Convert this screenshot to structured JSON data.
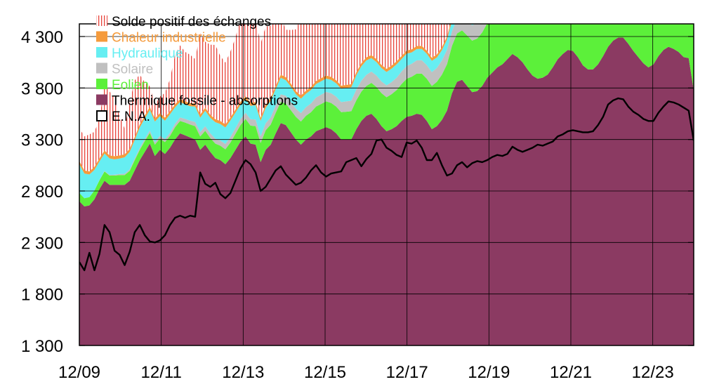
{
  "chart_data": {
    "type": "area",
    "title": "",
    "xlabel": "",
    "ylabel": "",
    "ylim": [
      1300,
      4300
    ],
    "y_ticks": [
      1300,
      1800,
      2300,
      2800,
      3300,
      3800,
      4300
    ],
    "y_tick_labels": [
      "1 300",
      "1 800",
      "2 300",
      "2 800",
      "3 300",
      "3 800",
      "4 300"
    ],
    "x_tick_labels": [
      "12/09",
      "12/11",
      "12/13",
      "12/15",
      "12/17",
      "12/19",
      "12/21",
      "12/23"
    ],
    "x_start": "2009-12",
    "x_end": "2024-12",
    "grid": true,
    "legend_position": "top-left",
    "stack_order": [
      "Thermique fossile - absorptions",
      "Eolien",
      "Solaire",
      "Hydraulique",
      "Chaleur industrielle",
      "Solde positif des échanges"
    ],
    "series": [
      {
        "name": "Thermique fossile - absorptions",
        "color": "#8b3a62",
        "values": [
          1400,
          1350,
          1360,
          1420,
          1520,
          1600,
          1560,
          1560,
          1560,
          1560,
          1600,
          1700,
          1800,
          1880,
          1960,
          1840,
          1900,
          1860,
          1920,
          2000,
          2060,
          2040,
          2020,
          2000,
          1900,
          1950,
          1880,
          1820,
          1800,
          1760,
          1820,
          1900,
          1980,
          2030,
          1960,
          1950,
          1780,
          1900,
          1950,
          2060,
          2160,
          2140,
          2070,
          2000,
          1950,
          2000,
          2030,
          2080,
          2100,
          2120,
          2100,
          2060,
          2000,
          2000,
          2000,
          2100,
          2180,
          2230,
          2250,
          2200,
          2130,
          2080,
          2100,
          2130,
          2180,
          2220,
          2230,
          2250,
          2240,
          2180,
          2100,
          2130,
          2190,
          2280,
          2450,
          2560,
          2580,
          2520,
          2460,
          2470,
          2520,
          2600,
          2650,
          2700,
          2730,
          2780,
          2830,
          2800,
          2750,
          2680,
          2620,
          2590,
          2600,
          2630,
          2700,
          2780,
          2830,
          2870,
          2860,
          2800,
          2720,
          2680,
          2680,
          2730,
          2810,
          2900,
          2960,
          2990,
          2990,
          2930,
          2860,
          2800,
          2740,
          2700,
          2730,
          2810,
          2870,
          2900,
          2880,
          2850,
          2800,
          2790,
          2480
        ]
      },
      {
        "name": "Eolien",
        "color": "#5cf03a",
        "values": [
          80,
          80,
          80,
          85,
          85,
          90,
          90,
          90,
          95,
          95,
          95,
          100,
          100,
          105,
          105,
          110,
          110,
          115,
          115,
          120,
          120,
          125,
          125,
          130,
          130,
          135,
          135,
          140,
          140,
          145,
          150,
          155,
          160,
          170,
          175,
          180,
          185,
          190,
          195,
          200,
          205,
          210,
          215,
          220,
          225,
          230,
          235,
          240,
          245,
          250,
          255,
          260,
          265,
          270,
          275,
          280,
          285,
          290,
          300,
          310,
          320,
          330,
          340,
          350,
          360,
          370,
          380,
          390,
          400,
          410,
          420,
          430,
          440,
          450,
          460,
          470,
          480,
          490,
          500,
          510,
          520,
          530,
          540,
          550,
          560,
          570,
          580,
          590,
          600,
          610,
          620,
          630,
          640,
          650,
          660,
          670,
          680,
          690,
          700,
          710,
          720,
          730,
          740,
          750,
          760,
          770,
          780,
          790,
          800,
          810,
          820,
          830,
          840,
          850,
          860,
          870,
          880,
          890,
          900,
          910,
          920,
          930,
          940
        ]
      },
      {
        "name": "Solaire",
        "color": "#c0c0c0",
        "values": [
          0,
          0,
          0,
          0,
          2,
          4,
          6,
          8,
          10,
          12,
          14,
          16,
          18,
          20,
          22,
          24,
          26,
          28,
          30,
          32,
          34,
          36,
          38,
          40,
          42,
          44,
          46,
          48,
          50,
          52,
          54,
          56,
          58,
          60,
          62,
          64,
          66,
          68,
          70,
          72,
          74,
          76,
          78,
          80,
          82,
          84,
          86,
          88,
          90,
          92,
          94,
          96,
          98,
          100,
          102,
          104,
          106,
          108,
          110,
          112,
          114,
          116,
          118,
          120,
          122,
          124,
          126,
          128,
          130,
          132,
          134,
          136,
          138,
          140,
          142,
          144,
          146,
          148,
          150,
          152,
          154,
          156,
          158,
          160,
          162,
          164,
          166,
          168,
          170,
          172,
          174,
          176,
          178,
          180,
          182,
          184,
          186,
          188,
          190,
          192,
          194,
          196,
          198,
          200,
          202,
          204,
          206,
          208,
          210,
          212,
          214,
          216,
          218,
          220,
          222,
          224,
          226,
          228,
          230,
          232,
          234,
          236,
          238
        ]
      },
      {
        "name": "Hydraulique",
        "color": "#66eef2",
        "values": [
          280,
          240,
          220,
          200,
          180,
          170,
          160,
          150,
          150,
          160,
          170,
          180,
          200,
          200,
          200,
          200,
          190,
          180,
          180,
          160,
          150,
          140,
          140,
          150,
          140,
          150,
          150,
          160,
          160,
          160,
          160,
          150,
          140,
          130,
          130,
          140,
          150,
          150,
          160,
          160,
          160,
          150,
          150,
          140,
          140,
          130,
          130,
          130,
          130,
          130,
          130,
          130,
          130,
          130,
          130,
          140,
          140,
          140,
          130,
          130,
          130,
          130,
          130,
          130,
          120,
          120,
          110,
          110,
          110,
          110,
          110,
          100,
          100,
          100,
          100,
          100,
          100,
          100,
          100,
          100,
          90,
          90,
          90,
          90,
          90,
          80,
          80,
          80,
          80,
          80,
          70,
          70,
          70,
          70,
          70,
          70,
          70,
          70,
          70,
          70,
          70,
          70,
          70,
          70,
          70,
          70,
          70,
          70,
          70,
          70,
          70,
          70,
          70,
          70,
          70,
          70,
          70,
          70,
          70,
          70,
          70,
          70,
          70
        ]
      },
      {
        "name": "Chaleur industrielle",
        "color": "#f59b3c",
        "values": [
          30,
          30,
          30,
          30,
          30,
          30,
          30,
          30,
          30,
          30,
          30,
          30,
          30,
          30,
          30,
          30,
          30,
          30,
          30,
          30,
          30,
          30,
          30,
          30,
          30,
          30,
          30,
          30,
          30,
          30,
          30,
          30,
          30,
          30,
          30,
          30,
          30,
          30,
          30,
          30,
          30,
          30,
          30,
          30,
          30,
          30,
          30,
          30,
          30,
          30,
          30,
          30,
          30,
          30,
          30,
          30,
          30,
          30,
          30,
          30,
          30,
          30,
          30,
          30,
          30,
          30,
          30,
          30,
          30,
          30,
          30,
          30,
          30,
          30,
          30,
          30,
          30,
          30,
          30,
          30,
          30,
          30,
          30,
          30,
          30,
          30,
          30,
          30,
          30,
          30,
          30,
          30,
          30,
          30,
          30,
          30,
          30,
          30,
          30,
          30,
          30,
          30,
          30,
          30,
          30,
          30,
          30,
          30,
          30,
          30,
          30,
          30,
          30,
          30,
          30,
          30,
          30,
          30,
          30,
          30,
          30,
          30,
          30
        ]
      },
      {
        "name": "Solde positif des échanges",
        "color": "#e8433a",
        "pattern": "vertical-hatch",
        "values": [
          320,
          330,
          360,
          340,
          380,
          650,
          620,
          560,
          380,
          250,
          450,
          550,
          480,
          320,
          200,
          130,
          160,
          240,
          310,
          480,
          520,
          480,
          470,
          430,
          790,
          640,
          680,
          720,
          630,
          600,
          640,
          700,
          800,
          900,
          870,
          800,
          720,
          760,
          700,
          660,
          560,
          460,
          520,
          600,
          750,
          700,
          830,
          820,
          720,
          650,
          690,
          700,
          730,
          820,
          850,
          800,
          700,
          740,
          820,
          970,
          980,
          870,
          820,
          760,
          690,
          830,
          780,
          790,
          660,
          560,
          690,
          740,
          640,
          420,
          300,
          270,
          180,
          120,
          220,
          250,
          180,
          130,
          110,
          80,
          30,
          20,
          20,
          10,
          10,
          10,
          0,
          0,
          0,
          0,
          0,
          0,
          0,
          0,
          0,
          0,
          0,
          0,
          0,
          0,
          0,
          0,
          0,
          0,
          0,
          0,
          0,
          0,
          0,
          0,
          0,
          0,
          0,
          0,
          0,
          0,
          0,
          0,
          0
        ]
      },
      {
        "name": "E.N.A.",
        "color": "#000000",
        "type": "line",
        "values": [
          2110,
          2030,
          2200,
          2030,
          2190,
          2470,
          2400,
          2220,
          2180,
          2080,
          2210,
          2400,
          2470,
          2370,
          2310,
          2300,
          2320,
          2370,
          2470,
          2540,
          2560,
          2540,
          2560,
          2550,
          2980,
          2870,
          2840,
          2880,
          2770,
          2730,
          2780,
          2900,
          3020,
          3100,
          3060,
          2980,
          2800,
          2840,
          2920,
          3000,
          3040,
          2960,
          2910,
          2860,
          2880,
          2930,
          3000,
          3050,
          2980,
          2940,
          2970,
          2980,
          2990,
          3080,
          3100,
          3120,
          3040,
          3110,
          3160,
          3290,
          3300,
          3220,
          3190,
          3150,
          3130,
          3270,
          3260,
          3290,
          3220,
          3100,
          3100,
          3170,
          3050,
          2950,
          2970,
          3050,
          3080,
          3030,
          3070,
          3090,
          3080,
          3100,
          3130,
          3150,
          3140,
          3160,
          3230,
          3200,
          3180,
          3200,
          3220,
          3250,
          3240,
          3260,
          3280,
          3330,
          3350,
          3380,
          3390,
          3380,
          3370,
          3370,
          3380,
          3440,
          3520,
          3640,
          3680,
          3700,
          3690,
          3620,
          3570,
          3540,
          3500,
          3480,
          3480,
          3560,
          3620,
          3670,
          3660,
          3640,
          3610,
          3580,
          3290
        ]
      }
    ]
  }
}
